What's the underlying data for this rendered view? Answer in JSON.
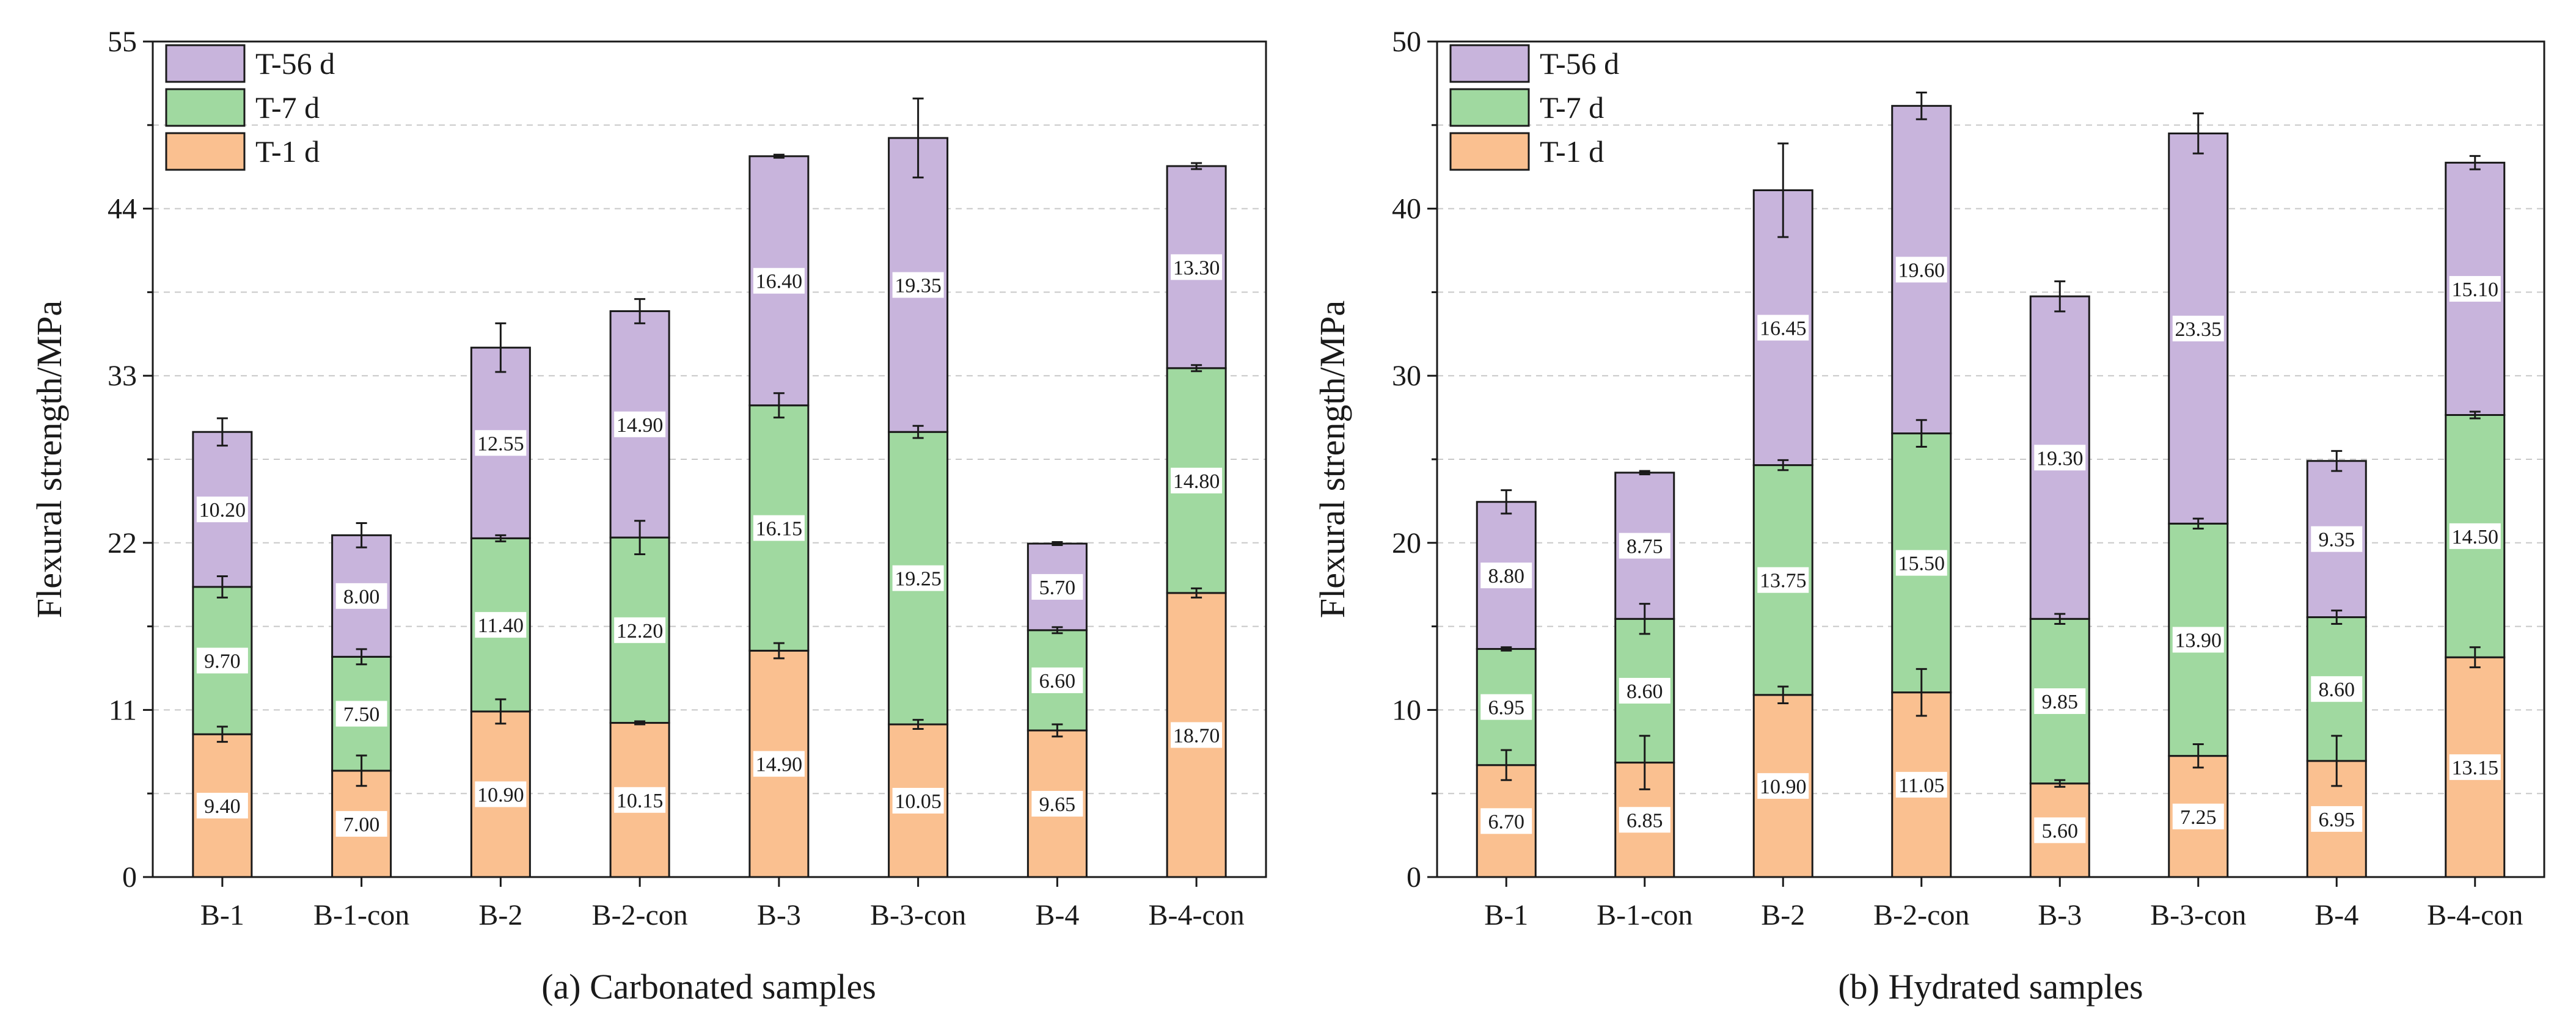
{
  "chart_data": [
    {
      "type": "bar",
      "stacked": true,
      "title": "(a) Carbonated samples",
      "xlabel": "",
      "ylabel": "Flexural strength/MPa",
      "ylim": [
        0,
        55
      ],
      "yticks": [
        0,
        11,
        22,
        33,
        44,
        55
      ],
      "grid": true,
      "legend_position": "top-left",
      "categories": [
        "B-1",
        "B-1-con",
        "B-2",
        "B-2-con",
        "B-3",
        "B-3-con",
        "B-4",
        "B-4-con"
      ],
      "series": [
        {
          "name": "T-1 d",
          "color": "#FAC090",
          "values": [
            9.4,
            7.0,
            10.9,
            10.15,
            14.9,
            10.05,
            9.65,
            18.7
          ],
          "labels": [
            "9.40",
            "7.00",
            "10.90",
            "10.15",
            "14.90",
            "10.05",
            "9.65",
            "18.70"
          ],
          "errors": [
            0.5,
            1.0,
            0.8,
            0.1,
            0.5,
            0.3,
            0.4,
            0.3
          ]
        },
        {
          "name": "T-7 d",
          "color": "#A0D9A0",
          "values": [
            9.7,
            7.5,
            11.4,
            12.2,
            16.15,
            19.25,
            6.6,
            14.8
          ],
          "labels": [
            "9.70",
            "7.50",
            "11.40",
            "12.20",
            "16.15",
            "19.25",
            "6.60",
            "14.80"
          ],
          "errors": [
            0.7,
            0.5,
            0.2,
            1.1,
            0.8,
            0.4,
            0.2,
            0.2
          ]
        },
        {
          "name": "T-56 d",
          "color": "#C8B4DC",
          "values": [
            10.2,
            8.0,
            12.55,
            14.9,
            16.4,
            19.35,
            5.7,
            13.3
          ],
          "labels": [
            "10.20",
            "8.00",
            "12.55",
            "14.90",
            "16.40",
            "19.35",
            "5.70",
            "13.30"
          ],
          "errors": [
            0.9,
            0.8,
            1.6,
            0.8,
            0.1,
            2.6,
            0.1,
            0.2
          ]
        }
      ]
    },
    {
      "type": "bar",
      "stacked": true,
      "title": "(b) Hydrated samples",
      "xlabel": "",
      "ylabel": "Flexural strength/MPa",
      "ylim": [
        0,
        50
      ],
      "yticks": [
        0,
        10,
        20,
        30,
        40,
        50
      ],
      "grid": true,
      "legend_position": "top-left",
      "categories": [
        "B-1",
        "B-1-con",
        "B-2",
        "B-2-con",
        "B-3",
        "B-3-con",
        "B-4",
        "B-4-con"
      ],
      "series": [
        {
          "name": "T-1 d",
          "color": "#FAC090",
          "values": [
            6.7,
            6.85,
            10.9,
            11.05,
            5.6,
            7.25,
            6.95,
            13.15
          ],
          "labels": [
            "6.70",
            "6.85",
            "10.90",
            "11.05",
            "5.60",
            "7.25",
            "6.95",
            "13.15"
          ],
          "errors": [
            0.9,
            1.6,
            0.5,
            1.4,
            0.2,
            0.7,
            1.5,
            0.6
          ]
        },
        {
          "name": "T-7 d",
          "color": "#A0D9A0",
          "values": [
            6.95,
            8.6,
            13.75,
            15.5,
            9.85,
            13.9,
            8.6,
            14.5
          ],
          "labels": [
            "6.95",
            "8.60",
            "13.75",
            "15.50",
            "9.85",
            "13.90",
            "8.60",
            "14.50"
          ],
          "errors": [
            0.1,
            0.9,
            0.3,
            0.8,
            0.3,
            0.3,
            0.4,
            0.2
          ]
        },
        {
          "name": "T-56 d",
          "color": "#C8B4DC",
          "values": [
            8.8,
            8.75,
            16.45,
            19.6,
            19.3,
            23.35,
            9.35,
            15.1
          ],
          "labels": [
            "8.80",
            "8.75",
            "16.45",
            "19.60",
            "19.30",
            "23.35",
            "9.35",
            "15.10"
          ],
          "errors": [
            0.7,
            0.1,
            2.8,
            0.8,
            0.9,
            1.2,
            0.6,
            0.4
          ]
        }
      ]
    }
  ]
}
